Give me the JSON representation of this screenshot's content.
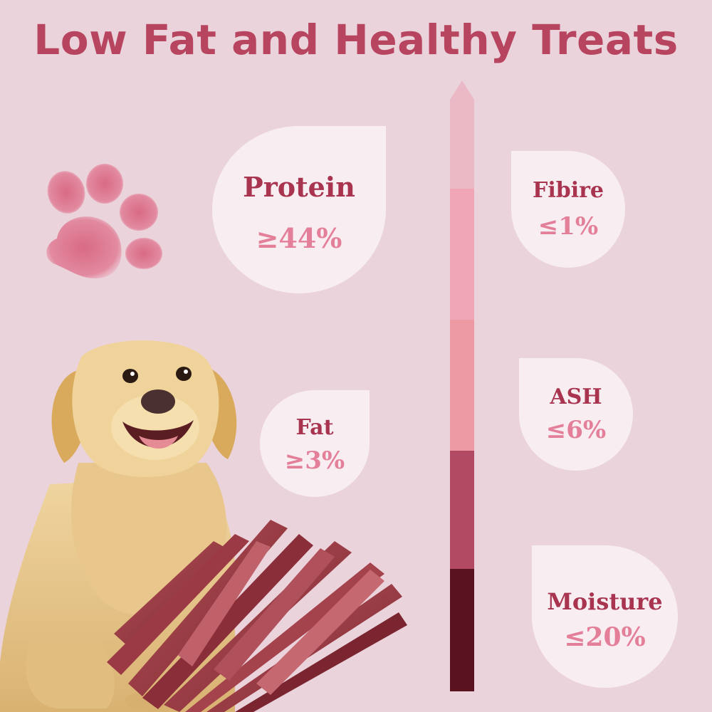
{
  "title": "Low Fat and Healthy Treats",
  "colors": {
    "background": "#ebd3dc",
    "title": "#b7455f",
    "card": "#f8eef2",
    "label": "#a8344f",
    "value": "#e47f9a",
    "bar_segments": [
      "#ebb8c6",
      "#f0a6b6",
      "#ee9aa4",
      "#b34a63",
      "#5a1220"
    ]
  },
  "nutrients": {
    "protein": {
      "label": "Protein",
      "value": "≥44%"
    },
    "fat": {
      "label": "Fat",
      "value": "≥3%"
    },
    "fibire": {
      "label": "Fibire",
      "value": "≤1%"
    },
    "ash": {
      "label": "ASH",
      "value": "≤6%"
    },
    "moisture": {
      "label": "Moisture",
      "value": "≤20%"
    }
  },
  "icons": [
    "paw-print-icon",
    "golden-retriever-illustration",
    "jerky-treats-illustration",
    "gradient-arrow-bar"
  ]
}
